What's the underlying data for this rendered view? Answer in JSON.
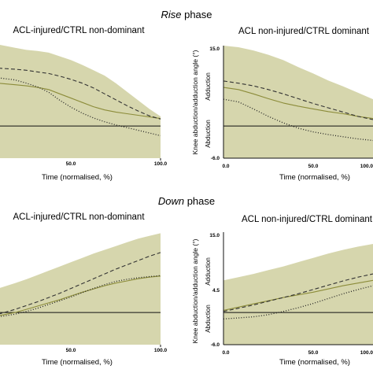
{
  "figure": {
    "rise_title": {
      "italic": "Rise",
      "rest": " phase"
    },
    "down_title": {
      "italic": "Down",
      "rest": " phase"
    },
    "colors": {
      "band": "#d6d6ad",
      "injured_line": "#8c8c3a",
      "dashed": "#333333",
      "dotted": "#222222",
      "zero_line": "#111111"
    }
  },
  "chart_data": [
    {
      "type": "line",
      "phase": "Rise",
      "title": "ACL-injured/CTRL non-dominant",
      "xlabel": "Time (normalised, %)",
      "ylabel": "",
      "xlim": [
        -45,
        100
      ],
      "ylim": [
        -6,
        15
      ],
      "x_ticks": [
        "50.0",
        "100.0"
      ],
      "y_ticks": [],
      "x": [
        -45,
        -30,
        -20,
        -10,
        0,
        10,
        20,
        30,
        40,
        50,
        60,
        70,
        80,
        90,
        100
      ],
      "band": {
        "upper": [
          15.2,
          14.6,
          14.2,
          14.0,
          13.7,
          13.0,
          12.3,
          11.4,
          10.4,
          9.4,
          8.0,
          6.4,
          4.8,
          3.2,
          1.8
        ],
        "lower": [
          -6,
          -6,
          -6,
          -6,
          -6,
          -6,
          -6,
          -6,
          -6,
          -6,
          -6,
          -6,
          -6,
          -6,
          -6
        ]
      },
      "series": [
        {
          "style": "solid",
          "values": [
            8.0,
            7.7,
            7.5,
            7.2,
            6.8,
            6.0,
            5.2,
            4.4,
            3.6,
            3.0,
            2.6,
            2.3,
            2.0,
            1.7,
            1.4
          ]
        },
        {
          "style": "dashed",
          "values": [
            10.8,
            10.6,
            10.4,
            10.1,
            9.8,
            9.3,
            8.7,
            8.0,
            7.1,
            6.0,
            4.9,
            3.8,
            2.8,
            1.9,
            1.3
          ]
        },
        {
          "style": "dotted",
          "values": [
            9.0,
            8.6,
            8.0,
            7.3,
            6.3,
            4.8,
            3.5,
            2.4,
            1.5,
            0.8,
            0.2,
            -0.3,
            -0.8,
            -1.3,
            -1.8
          ]
        }
      ]
    },
    {
      "type": "line",
      "phase": "Rise",
      "title": "ACL non-injured/CTRL dominant",
      "xlabel": "Time (normalised, %)",
      "ylabel": "Knee abduction/adduction angle (°)",
      "region_labels": {
        "upper": "Adduction",
        "lower": "Abduction"
      },
      "xlim": [
        0,
        100
      ],
      "ylim": [
        -6,
        15
      ],
      "y_ticks": [
        "15.0",
        "-6.0"
      ],
      "x_ticks": [
        "0.0",
        "50.0",
        "100.0"
      ],
      "x": [
        0,
        10,
        20,
        30,
        40,
        50,
        60,
        70,
        80,
        90,
        100
      ],
      "band": {
        "upper": [
          15.0,
          14.7,
          14.1,
          13.3,
          12.3,
          11.0,
          9.8,
          8.5,
          7.4,
          6.2,
          5.0
        ],
        "lower": [
          -6,
          -6,
          -6,
          -6,
          -6,
          -6,
          -6,
          -6,
          -6,
          -6,
          -6
        ]
      },
      "series": [
        {
          "style": "solid",
          "values": [
            7.2,
            6.8,
            6.0,
            5.1,
            4.3,
            3.7,
            3.2,
            2.7,
            2.3,
            1.8,
            1.4
          ]
        },
        {
          "style": "dashed",
          "values": [
            8.4,
            8.0,
            7.5,
            6.8,
            6.0,
            5.1,
            4.2,
            3.4,
            2.6,
            1.8,
            1.2
          ]
        },
        {
          "style": "dotted",
          "values": [
            5.0,
            4.5,
            3.2,
            1.8,
            0.6,
            -0.4,
            -1.1,
            -1.6,
            -2.0,
            -2.4,
            -2.7
          ]
        }
      ]
    },
    {
      "type": "line",
      "phase": "Down",
      "title": "ACL-injured/CTRL non-dominant",
      "xlabel": "Time (normalised, %)",
      "ylabel": "",
      "xlim": [
        -45,
        100
      ],
      "ylim": [
        -6,
        15
      ],
      "x_ticks": [
        "50.0",
        "100.0"
      ],
      "y_ticks": [],
      "x": [
        -45,
        -30,
        -20,
        -10,
        0,
        10,
        20,
        30,
        40,
        50,
        60,
        70,
        80,
        90,
        100
      ],
      "band": {
        "upper": [
          4.5,
          5.5,
          6.2,
          7.0,
          7.8,
          8.6,
          9.4,
          10.2,
          11.0,
          11.7,
          12.4,
          13.1,
          13.8,
          14.3,
          14.8
        ],
        "lower": [
          -6,
          -6,
          -6,
          -6,
          -6,
          -6,
          -6,
          -6,
          -6,
          -6,
          -6,
          -6,
          -6,
          -6,
          -6
        ]
      },
      "series": [
        {
          "style": "solid",
          "values": [
            -0.6,
            0.0,
            0.6,
            1.2,
            1.8,
            2.4,
            3.1,
            3.8,
            4.4,
            5.0,
            5.5,
            5.9,
            6.3,
            6.6,
            6.8
          ]
        },
        {
          "style": "dashed",
          "values": [
            -0.3,
            0.6,
            1.3,
            2.0,
            2.8,
            3.6,
            4.5,
            5.4,
            6.3,
            7.2,
            8.1,
            8.9,
            9.7,
            10.5,
            11.2
          ]
        },
        {
          "style": "dotted",
          "values": [
            -0.8,
            -0.3,
            0.2,
            0.8,
            1.5,
            2.2,
            2.9,
            3.7,
            4.5,
            5.2,
            5.8,
            6.2,
            6.5,
            6.7,
            6.9
          ]
        }
      ]
    },
    {
      "type": "line",
      "phase": "Down",
      "title": "ACL non-injured/CTRL dominant",
      "xlabel": "Time (normalised, %)",
      "ylabel": "Knee abduction/adduction angle (°)",
      "region_labels": {
        "upper": "Adduction",
        "lower": "Abduction"
      },
      "xlim": [
        0,
        100
      ],
      "ylim": [
        -6,
        15
      ],
      "y_ticks": [
        "15.0",
        "4.5",
        "-6.0"
      ],
      "x_ticks": [
        "0.0",
        "50.0",
        "100.0"
      ],
      "x": [
        0,
        10,
        20,
        30,
        40,
        50,
        60,
        70,
        80,
        90,
        100
      ],
      "band": {
        "upper": [
          6.0,
          6.6,
          7.2,
          7.9,
          8.6,
          9.4,
          10.2,
          11.0,
          11.7,
          12.3,
          12.8
        ],
        "lower": [
          -6,
          -6,
          -6,
          -6,
          -6,
          -6,
          -6,
          -6,
          -6,
          -6,
          -6
        ]
      },
      "series": [
        {
          "style": "solid",
          "values": [
            0.4,
            1.0,
            1.6,
            2.2,
            2.8,
            3.3,
            3.8,
            4.4,
            5.0,
            5.5,
            6.0
          ]
        },
        {
          "style": "dashed",
          "values": [
            0.2,
            0.8,
            1.4,
            2.1,
            2.8,
            3.5,
            4.3,
            5.1,
            5.9,
            6.6,
            7.2
          ]
        },
        {
          "style": "dotted",
          "values": [
            -1.2,
            -1.0,
            -0.8,
            -0.4,
            0.2,
            0.9,
            1.7,
            2.6,
            3.5,
            4.3,
            5.0
          ]
        }
      ]
    }
  ]
}
